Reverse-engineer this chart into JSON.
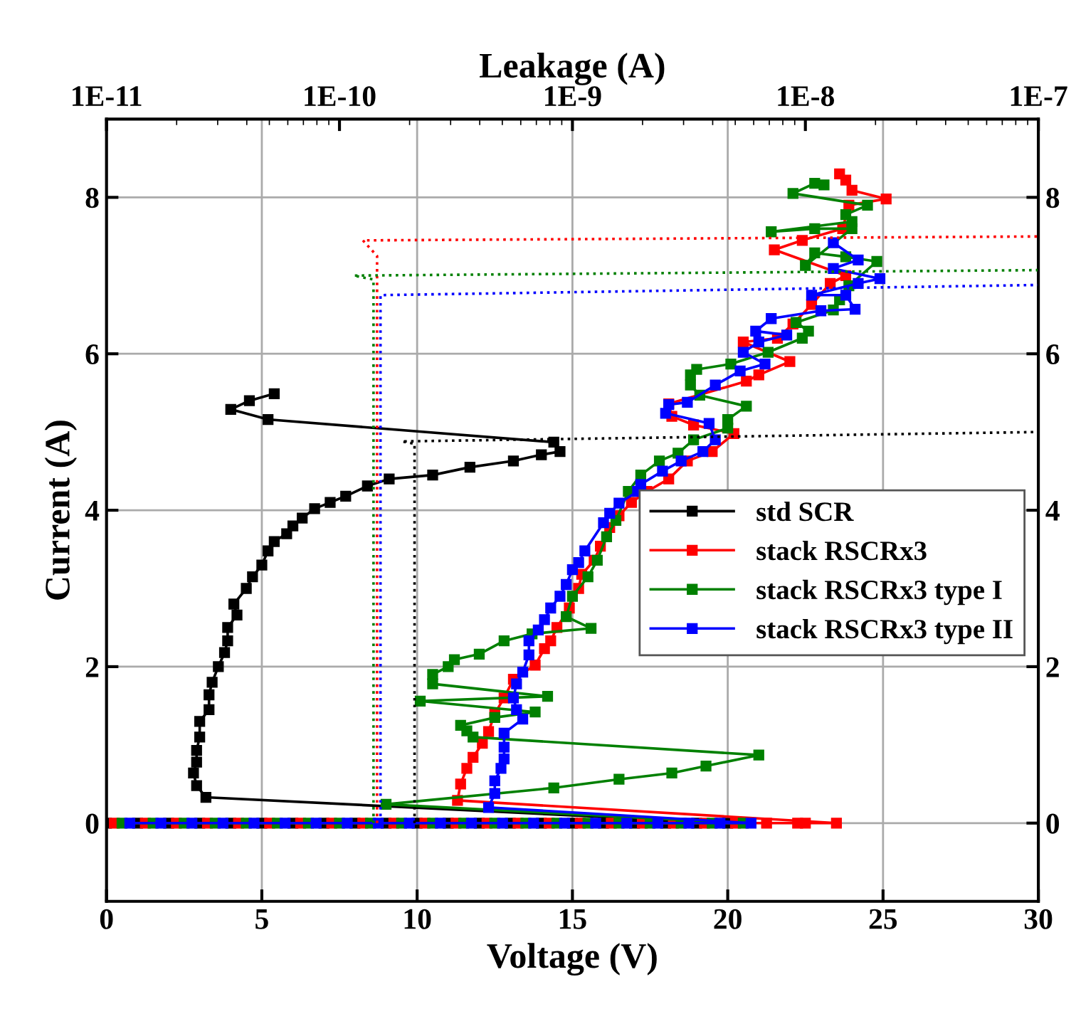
{
  "chart_data": {
    "type": "line",
    "xlabel": "Voltage (V)",
    "ylabel": "Current (A)",
    "x2label": "Leakage (A)",
    "xlim": [
      0,
      30
    ],
    "xticks": [
      0,
      5,
      10,
      15,
      20,
      25,
      30
    ],
    "ylim": [
      -1,
      9
    ],
    "yticks": [
      0,
      2,
      4,
      6,
      8
    ],
    "y2lim": [
      -1,
      9
    ],
    "y2ticks": [
      0,
      2,
      4,
      6,
      8
    ],
    "x2lim": [
      1e-11,
      1e-07
    ],
    "x2ticks": [
      {
        "value": 1e-11,
        "label": "1E-11"
      },
      {
        "value": 1e-10,
        "label": "1E-10"
      },
      {
        "value": 1e-09,
        "label": "1E-9"
      },
      {
        "value": 1e-08,
        "label": "1E-8"
      },
      {
        "value": 1e-07,
        "label": "1E-7"
      }
    ],
    "log": "x2",
    "grid": true,
    "legend": "right",
    "series": [
      {
        "name": "std SCR",
        "color": "#000000",
        "marker": "square",
        "line_style": "solid",
        "x": [
          0,
          1,
          2,
          3,
          4,
          5,
          6,
          7,
          8,
          9,
          10,
          11,
          12,
          13,
          14,
          15,
          16,
          17,
          18,
          19,
          20,
          3.2,
          2.9,
          2.8,
          2.9,
          2.9,
          3.0,
          3.0,
          3.3,
          3.3,
          3.4,
          3.6,
          3.8,
          3.9,
          3.9,
          4.2,
          4.1,
          4.5,
          4.7,
          5.0,
          5.2,
          5.4,
          5.8,
          6.0,
          6.3,
          6.7,
          7.2,
          7.7,
          8.4,
          9.1,
          10.5,
          11.7,
          13.1,
          14.0,
          14.6,
          14.4,
          5.2,
          4.0,
          4.6,
          5.4
        ],
        "values": [
          0,
          0,
          0,
          0,
          0,
          0,
          0,
          0,
          0,
          0,
          0,
          0,
          0,
          0,
          0,
          0,
          0,
          0,
          0,
          0,
          0,
          0.33,
          0.48,
          0.64,
          0.78,
          0.93,
          1.1,
          1.3,
          1.45,
          1.64,
          1.8,
          2.0,
          2.18,
          2.33,
          2.5,
          2.66,
          2.8,
          3.0,
          3.15,
          3.3,
          3.48,
          3.6,
          3.7,
          3.8,
          3.9,
          4.02,
          4.1,
          4.18,
          4.31,
          4.4,
          4.45,
          4.55,
          4.63,
          4.71,
          4.75,
          4.87,
          5.16,
          5.29,
          5.4,
          5.49
        ]
      },
      {
        "name": "stack RSCRx3",
        "color": "#ff0000",
        "marker": "square",
        "line_style": "solid",
        "x": [
          0.25,
          1.25,
          2.25,
          3.25,
          4.25,
          5.25,
          6.25,
          7.25,
          8.25,
          9.25,
          10.25,
          11.25,
          12.25,
          13.25,
          14.25,
          15.25,
          16.25,
          17.25,
          18.25,
          19.25,
          20.25,
          21.25,
          22.25,
          22.5,
          23.5,
          11.3,
          11.4,
          11.6,
          11.8,
          12.1,
          12.3,
          12.5,
          12.8,
          13.1,
          13.8,
          14.1,
          14.3,
          14.5,
          14.9,
          15.2,
          15.3,
          15.7,
          15.9,
          16.2,
          16.5,
          16.9,
          17.4,
          18.1,
          18.7,
          19.5,
          20.2,
          18.9,
          18.2,
          18.1,
          20.6,
          21.0,
          22.0,
          20.5,
          21.6,
          22.1,
          22.7,
          23.3,
          23.8,
          21.5,
          22.4,
          23.7,
          23.9,
          25.1,
          24.0,
          23.8,
          23.6
        ],
        "values": [
          0,
          0,
          0,
          0,
          0,
          0,
          0,
          0,
          0,
          0,
          0,
          0,
          0,
          0,
          0,
          0,
          0,
          0,
          0,
          0,
          0,
          0,
          0,
          0,
          0,
          0.29,
          0.5,
          0.7,
          0.84,
          1.02,
          1.17,
          1.4,
          1.6,
          1.84,
          2.02,
          2.23,
          2.33,
          2.5,
          2.75,
          3.0,
          3.18,
          3.36,
          3.54,
          3.78,
          3.93,
          4.1,
          4.24,
          4.4,
          4.63,
          4.75,
          4.98,
          5.09,
          5.2,
          5.36,
          5.65,
          5.73,
          5.9,
          6.15,
          6.2,
          6.38,
          6.63,
          6.9,
          7.0,
          7.33,
          7.45,
          7.6,
          7.9,
          7.98,
          8.09,
          8.22,
          8.3
        ]
      },
      {
        "name": "stack RSCRx3 type I",
        "color": "#008000",
        "marker": "square",
        "line_style": "solid",
        "x": [
          0.5,
          1.5,
          2.5,
          3.5,
          4.5,
          5.5,
          6.5,
          7.5,
          8.5,
          9.5,
          10.5,
          11.5,
          12.5,
          13.5,
          14.5,
          15.5,
          16.5,
          17.5,
          18.5,
          19.5,
          20.5,
          9.0,
          14.4,
          16.5,
          18.2,
          19.3,
          21.0,
          11.8,
          11.6,
          11.4,
          12.5,
          13.8,
          10.1,
          14.2,
          10.5,
          10.5,
          11.0,
          11.2,
          12.0,
          12.8,
          13.7,
          15.6,
          14.8,
          15.0,
          15.5,
          15.8,
          16.1,
          16.4,
          16.8,
          17.2,
          17.8,
          18.4,
          18.9,
          20.0,
          20.0,
          20.6,
          19.1,
          18.8,
          18.8,
          19.0,
          20.1,
          21.3,
          22.4,
          22.6,
          22.2,
          23.4,
          23.6,
          23.9,
          24.8,
          23.8,
          22.8,
          22.5,
          24.0,
          22.8,
          21.4,
          24.0,
          23.8,
          24.5,
          22.1,
          22.8,
          23.1
        ],
        "values": [
          0,
          0,
          0,
          0,
          0,
          0,
          0,
          0,
          0,
          0,
          0,
          0,
          0,
          0,
          0,
          0,
          0,
          0,
          0,
          0,
          0,
          0.24,
          0.45,
          0.56,
          0.64,
          0.73,
          0.87,
          1.1,
          1.18,
          1.25,
          1.35,
          1.42,
          1.56,
          1.62,
          1.78,
          1.9,
          2.0,
          2.09,
          2.16,
          2.33,
          2.42,
          2.49,
          2.64,
          2.9,
          3.15,
          3.36,
          3.66,
          3.87,
          4.24,
          4.45,
          4.63,
          4.73,
          4.9,
          5.05,
          5.16,
          5.33,
          5.47,
          5.6,
          5.73,
          5.8,
          5.87,
          6.02,
          6.2,
          6.29,
          6.4,
          6.56,
          6.69,
          6.87,
          7.18,
          7.24,
          7.29,
          7.13,
          7.6,
          7.6,
          7.56,
          7.69,
          7.78,
          7.9,
          8.05,
          8.18,
          8.16
        ]
      },
      {
        "name": "stack RSCRx3 type II",
        "color": "#0000ff",
        "marker": "square",
        "line_style": "solid",
        "x": [
          0.75,
          1.75,
          2.75,
          3.75,
          4.75,
          5.75,
          6.75,
          7.75,
          8.75,
          9.75,
          10.75,
          11.75,
          12.75,
          13.75,
          14.75,
          15.75,
          16.75,
          17.75,
          18.75,
          19.75,
          20.75,
          12.3,
          12.5,
          12.5,
          12.7,
          12.8,
          12.8,
          12.8,
          13.4,
          13.2,
          13.1,
          13.2,
          13.4,
          13.6,
          13.6,
          13.9,
          14.1,
          14.3,
          14.6,
          14.8,
          15.0,
          15.2,
          15.4,
          16.0,
          16.2,
          16.5,
          17.1,
          17.2,
          17.9,
          18.5,
          19.2,
          19.6,
          19.4,
          18.0,
          18.1,
          18.7,
          19.6,
          20.4,
          21.2,
          20.5,
          21.0,
          21.9,
          20.9,
          21.4,
          23.0,
          24.1,
          23.8,
          22.7,
          24.2,
          24.9,
          23.4,
          24.2,
          23.4
        ],
        "values": [
          0,
          0,
          0,
          0,
          0,
          0,
          0,
          0,
          0,
          0,
          0,
          0,
          0,
          0,
          0,
          0,
          0,
          0,
          0,
          0,
          0,
          0.2,
          0.38,
          0.54,
          0.7,
          0.82,
          0.97,
          1.15,
          1.33,
          1.45,
          1.6,
          1.78,
          1.93,
          2.15,
          2.33,
          2.47,
          2.6,
          2.75,
          2.9,
          3.05,
          3.24,
          3.33,
          3.48,
          3.84,
          3.96,
          4.09,
          4.24,
          4.33,
          4.5,
          4.63,
          4.75,
          4.9,
          5.11,
          5.24,
          5.35,
          5.38,
          5.6,
          5.78,
          5.87,
          6.02,
          6.15,
          6.24,
          6.29,
          6.45,
          6.55,
          6.57,
          6.75,
          6.75,
          6.9,
          6.96,
          7.09,
          7.2,
          7.42
        ]
      },
      {
        "color": "#000000",
        "axis": "x2",
        "marker": "none",
        "line_style": "dotted",
        "x": [
          2.1e-10,
          2.1e-10,
          1.85e-10,
          1e-07
        ],
        "values": [
          0,
          4.85,
          4.88,
          5.0
        ]
      },
      {
        "color": "#ff0000",
        "axis": "x2",
        "marker": "none",
        "line_style": "dotted",
        "x": [
          1.45e-10,
          1.45e-10,
          1.26e-10,
          1e-07
        ],
        "values": [
          0,
          7.25,
          7.45,
          7.5
        ]
      },
      {
        "color": "#008000",
        "axis": "x2",
        "marker": "none",
        "line_style": "dotted",
        "x": [
          1.4e-10,
          1.4e-10,
          1.15e-10,
          1e-07
        ],
        "values": [
          0,
          6.95,
          7.0,
          7.07
        ]
      },
      {
        "color": "#0000ff",
        "axis": "x2",
        "marker": "none",
        "line_style": "dotted",
        "x": [
          1.5e-10,
          1.5e-10,
          1e-07
        ],
        "values": [
          0,
          6.75,
          6.88
        ]
      }
    ]
  }
}
